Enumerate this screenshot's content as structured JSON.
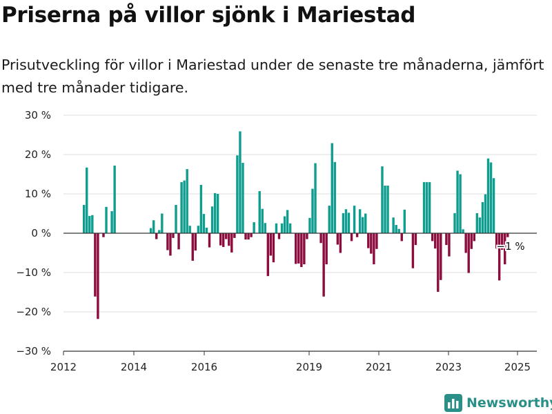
{
  "title": "Priserna på villor sjönk i Mariestad",
  "subtitle": "Prisutveckling för villor i Mariestad under de senaste tre månaderna, jämfört med tre månader tidigare.",
  "brand": "Newsworthy",
  "colors": {
    "positive": "#0f9d8f",
    "negative": "#8c0c3e",
    "grid": "#dddddd",
    "axis": "#333333",
    "text": "#222222",
    "brand": "#2a8f87"
  },
  "chart_data": {
    "type": "bar",
    "xlabel": "",
    "ylabel": "",
    "x_ticks": [
      "2012",
      "2014",
      "2016",
      "2019",
      "2021",
      "2023",
      "2025"
    ],
    "y_ticks": [
      "30 %",
      "20 %",
      "10 %",
      "0 %",
      "−10 %",
      "−20 %",
      "−30 %"
    ],
    "ylim": [
      -30,
      30
    ],
    "grid": true,
    "annotation": "−1 %",
    "series": [
      {
        "values": [
          7.2,
          16.7,
          4.4,
          4.6,
          -16.1,
          -21.8,
          0,
          -1.0,
          6.7,
          0,
          5.6,
          17.2,
          0,
          0,
          0,
          0,
          0,
          0,
          0,
          0,
          0,
          0,
          0,
          0,
          1.3,
          3.3,
          -1.5,
          0.8,
          5.0,
          0,
          -4.3,
          -5.7,
          -1.2,
          7.2,
          -4.1,
          13.0,
          13.4,
          16.3,
          1.9,
          -7.0,
          -4.4,
          1.9,
          12.3,
          4.9,
          1.4,
          -3.6,
          6.8,
          10.2,
          10.0,
          -3.1,
          -3.5,
          -1.5,
          -3.2,
          -4.9,
          -1.2,
          19.8,
          25.9,
          17.9,
          -1.6,
          -1.6,
          -1.0,
          2.8,
          0,
          10.7,
          6.2,
          2.6,
          -10.9,
          -5.7,
          -7.4,
          2.5,
          -1.5,
          2.5,
          4.3,
          5.9,
          2.5,
          0,
          -7.8,
          -7.7,
          -8.6,
          -7.9,
          -1.5,
          3.9,
          11.3,
          17.8,
          0,
          -2.5,
          -16.1,
          -7.9,
          7.0,
          22.9,
          18.1,
          -2.9,
          -5.0,
          5.1,
          6.1,
          5.2,
          -2.0,
          7.0,
          -1.0,
          6.1,
          4.1,
          5.0,
          -3.8,
          -5.2,
          -7.9,
          -4.0,
          0,
          17.0,
          12.1,
          12.1,
          0,
          4.0,
          2.1,
          1.1,
          -2.0,
          6.0,
          0,
          0,
          -8.9,
          -3.0,
          0,
          0,
          13.0,
          13.0,
          13.0,
          -2.0,
          -3.9,
          -14.9,
          -11.9,
          0,
          -3.0,
          -5.9,
          0,
          5.1,
          15.9,
          15.0,
          1.0,
          -5.0,
          -10.1,
          -4.0,
          -2.0,
          5.1,
          4.0,
          7.9,
          9.9,
          19.0,
          18.0,
          14.0,
          -3.9,
          -12.0,
          -4.2,
          -7.9,
          -1.0
        ]
      }
    ]
  }
}
